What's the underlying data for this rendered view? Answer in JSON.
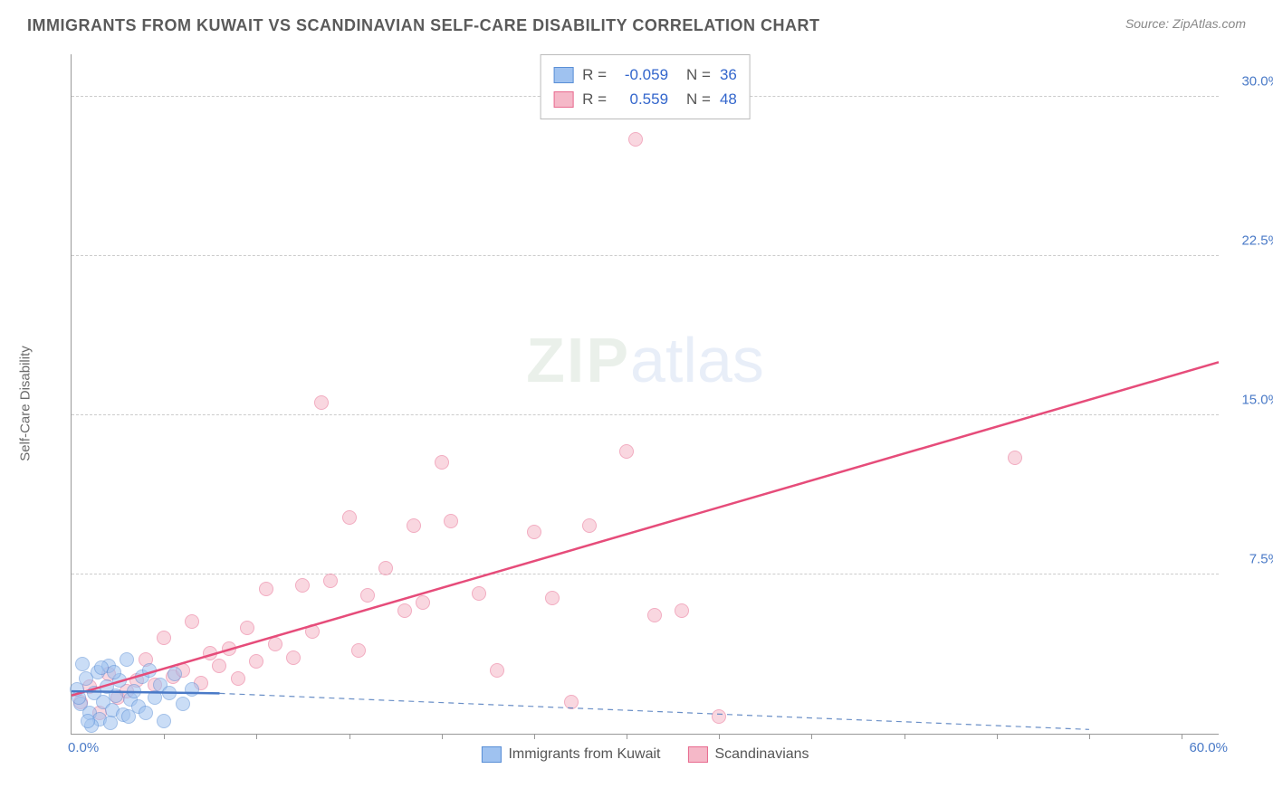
{
  "title": "IMMIGRANTS FROM KUWAIT VS SCANDINAVIAN SELF-CARE DISABILITY CORRELATION CHART",
  "source": "Source: ZipAtlas.com",
  "ylabel": "Self-Care Disability",
  "watermark": {
    "zip": "ZIP",
    "atlas": "atlas"
  },
  "chart": {
    "type": "scatter",
    "xlim": [
      0,
      62
    ],
    "ylim": [
      0,
      32
    ],
    "yticks": [
      {
        "v": 7.5,
        "label": "7.5%"
      },
      {
        "v": 15.0,
        "label": "15.0%"
      },
      {
        "v": 22.5,
        "label": "22.5%"
      },
      {
        "v": 30.0,
        "label": "30.0%"
      }
    ],
    "xticks_origin": "0.0%",
    "xticks_end": "60.0%",
    "xgrid_marks": [
      5,
      10,
      15,
      20,
      25,
      30,
      35,
      40,
      45,
      50,
      55,
      60
    ],
    "background_color": "#ffffff",
    "grid_color": "#cccccc",
    "axis_color": "#999999",
    "marker_radius": 8,
    "marker_opacity": 0.55,
    "line_width": 2.5
  },
  "series": {
    "kuwait": {
      "label": "Immigrants from Kuwait",
      "R": "-0.059",
      "N": "36",
      "fill": "#9fc2f0",
      "stroke": "#5a8fd6",
      "line_color": "#4a7ac7",
      "line_dash": "none",
      "regression": {
        "x1": 0,
        "y1": 2.0,
        "x2": 8,
        "y2": 1.9
      },
      "points": [
        {
          "x": 0.3,
          "y": 2.1
        },
        {
          "x": 0.5,
          "y": 1.4
        },
        {
          "x": 0.8,
          "y": 2.6
        },
        {
          "x": 1.0,
          "y": 1.0
        },
        {
          "x": 1.2,
          "y": 1.9
        },
        {
          "x": 1.4,
          "y": 2.9
        },
        {
          "x": 1.5,
          "y": 0.7
        },
        {
          "x": 1.7,
          "y": 1.5
        },
        {
          "x": 1.9,
          "y": 2.2
        },
        {
          "x": 2.0,
          "y": 3.2
        },
        {
          "x": 2.2,
          "y": 1.1
        },
        {
          "x": 2.4,
          "y": 1.8
        },
        {
          "x": 2.6,
          "y": 2.5
        },
        {
          "x": 2.8,
          "y": 0.9
        },
        {
          "x": 3.0,
          "y": 3.5
        },
        {
          "x": 3.2,
          "y": 1.6
        },
        {
          "x": 3.4,
          "y": 2.0
        },
        {
          "x": 3.6,
          "y": 1.3
        },
        {
          "x": 3.8,
          "y": 2.7
        },
        {
          "x": 4.0,
          "y": 1.0
        },
        {
          "x": 4.2,
          "y": 3.0
        },
        {
          "x": 4.5,
          "y": 1.7
        },
        {
          "x": 4.8,
          "y": 2.3
        },
        {
          "x": 5.0,
          "y": 0.6
        },
        {
          "x": 5.3,
          "y": 1.9
        },
        {
          "x": 5.6,
          "y": 2.8
        },
        {
          "x": 6.0,
          "y": 1.4
        },
        {
          "x": 6.5,
          "y": 2.1
        },
        {
          "x": 1.1,
          "y": 0.4
        },
        {
          "x": 0.6,
          "y": 3.3
        },
        {
          "x": 2.1,
          "y": 0.5
        },
        {
          "x": 3.1,
          "y": 0.8
        },
        {
          "x": 0.4,
          "y": 1.7
        },
        {
          "x": 1.6,
          "y": 3.1
        },
        {
          "x": 2.3,
          "y": 2.9
        },
        {
          "x": 0.9,
          "y": 0.6
        }
      ]
    },
    "scandinavian": {
      "label": "Scandinavians",
      "R": "0.559",
      "N": "48",
      "fill": "#f5b8c8",
      "stroke": "#e86a8f",
      "line_color": "#e64c7a",
      "line_dash": "none",
      "regression": {
        "x1": 0,
        "y1": 1.8,
        "x2": 62,
        "y2": 17.5
      },
      "trail_dash": {
        "x1": 8,
        "y1": 1.9,
        "x2": 55,
        "y2": 0.2,
        "color": "#6a8fc7"
      },
      "points": [
        {
          "x": 0.5,
          "y": 1.5
        },
        {
          "x": 1.0,
          "y": 2.2
        },
        {
          "x": 1.5,
          "y": 1.0
        },
        {
          "x": 2.0,
          "y": 2.8
        },
        {
          "x": 2.5,
          "y": 1.7
        },
        {
          "x": 3.0,
          "y": 2.0
        },
        {
          "x": 3.5,
          "y": 2.5
        },
        {
          "x": 4.0,
          "y": 3.5
        },
        {
          "x": 4.5,
          "y": 2.3
        },
        {
          "x": 5.0,
          "y": 4.5
        },
        {
          "x": 5.5,
          "y": 2.7
        },
        {
          "x": 6.0,
          "y": 3.0
        },
        {
          "x": 6.5,
          "y": 5.3
        },
        {
          "x": 7.0,
          "y": 2.4
        },
        {
          "x": 7.5,
          "y": 3.8
        },
        {
          "x": 8.0,
          "y": 3.2
        },
        {
          "x": 8.5,
          "y": 4.0
        },
        {
          "x": 9.0,
          "y": 2.6
        },
        {
          "x": 10.0,
          "y": 3.4
        },
        {
          "x": 10.5,
          "y": 6.8
        },
        {
          "x": 11.0,
          "y": 4.2
        },
        {
          "x": 12.0,
          "y": 3.6
        },
        {
          "x": 12.5,
          "y": 7.0
        },
        {
          "x": 13.0,
          "y": 4.8
        },
        {
          "x": 13.5,
          "y": 15.6
        },
        {
          "x": 14.0,
          "y": 7.2
        },
        {
          "x": 15.0,
          "y": 10.2
        },
        {
          "x": 15.5,
          "y": 3.9
        },
        {
          "x": 16.0,
          "y": 6.5
        },
        {
          "x": 17.0,
          "y": 7.8
        },
        {
          "x": 18.0,
          "y": 5.8
        },
        {
          "x": 18.5,
          "y": 9.8
        },
        {
          "x": 19.0,
          "y": 6.2
        },
        {
          "x": 20.0,
          "y": 12.8
        },
        {
          "x": 20.5,
          "y": 10.0
        },
        {
          "x": 22.0,
          "y": 6.6
        },
        {
          "x": 23.0,
          "y": 3.0
        },
        {
          "x": 25.0,
          "y": 9.5
        },
        {
          "x": 26.0,
          "y": 6.4
        },
        {
          "x": 27.0,
          "y": 1.5
        },
        {
          "x": 28.0,
          "y": 9.8
        },
        {
          "x": 30.0,
          "y": 13.3
        },
        {
          "x": 30.5,
          "y": 28.0
        },
        {
          "x": 31.5,
          "y": 5.6
        },
        {
          "x": 33.0,
          "y": 5.8
        },
        {
          "x": 35.0,
          "y": 0.8
        },
        {
          "x": 51.0,
          "y": 13.0
        },
        {
          "x": 9.5,
          "y": 5.0
        }
      ]
    }
  },
  "bottom_legend": [
    {
      "key": "kuwait"
    },
    {
      "key": "scandinavian"
    }
  ]
}
